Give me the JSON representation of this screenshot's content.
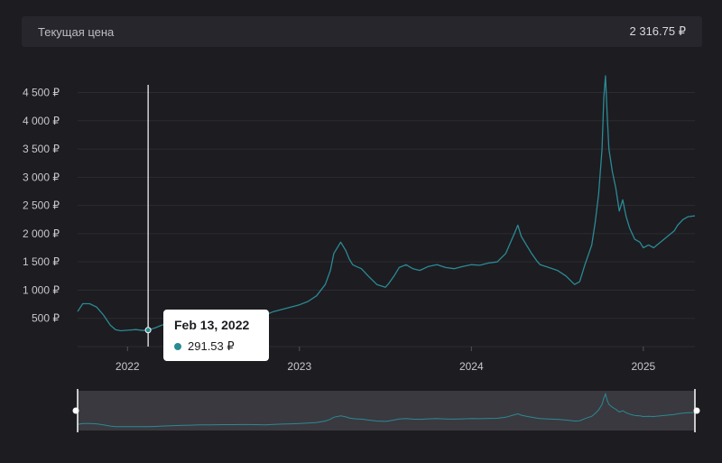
{
  "header": {
    "label": "Текущая цена",
    "current_price": "2 316.75 ₽"
  },
  "tooltip": {
    "date": "Feb 13, 2022",
    "value": "291.53 ₽"
  },
  "colors": {
    "background": "#1d1c21",
    "line": "#2a8a94",
    "grid": "#2c2b31",
    "crosshair": "#ffffff"
  },
  "chart_data": {
    "type": "line",
    "title": "",
    "xlabel": "",
    "ylabel": "",
    "currency_suffix": " ₽",
    "ylim": [
      0,
      4700
    ],
    "xlim": [
      2021.71,
      2025.3
    ],
    "y_ticks": [
      500,
      1000,
      1500,
      2000,
      2500,
      3000,
      3500,
      4000,
      4500
    ],
    "y_tick_labels": [
      "500 ₽",
      "1 000 ₽",
      "1 500 ₽",
      "2 000 ₽",
      "2 500 ₽",
      "3 000 ₽",
      "3 500 ₽",
      "4 000 ₽",
      "4 500 ₽"
    ],
    "x_ticks": [
      2022,
      2023,
      2024,
      2025
    ],
    "x_tick_labels": [
      "2022",
      "2023",
      "2024",
      "2025"
    ],
    "grid": true,
    "crosshair_x": 2022.12,
    "series": [
      {
        "x": [
          2021.71,
          2021.74,
          2021.78,
          2021.82,
          2021.86,
          2021.9,
          2021.93,
          2021.96,
          2022.0,
          2022.05,
          2022.09,
          2022.12,
          2022.16,
          2022.2,
          2022.25,
          2022.3,
          2022.36,
          2022.42,
          2022.48,
          2022.55,
          2022.62,
          2022.68,
          2022.75,
          2022.8,
          2022.85,
          2022.9,
          2022.95,
          2023.0,
          2023.05,
          2023.1,
          2023.15,
          2023.18,
          2023.2,
          2023.24,
          2023.27,
          2023.29,
          2023.31,
          2023.33,
          2023.36,
          2023.4,
          2023.45,
          2023.5,
          2023.52,
          2023.55,
          2023.58,
          2023.62,
          2023.66,
          2023.7,
          2023.75,
          2023.8,
          2023.85,
          2023.9,
          2023.95,
          2024.0,
          2024.05,
          2024.1,
          2024.15,
          2024.2,
          2024.25,
          2024.27,
          2024.29,
          2024.32,
          2024.35,
          2024.38,
          2024.4,
          2024.45,
          2024.5,
          2024.55,
          2024.6,
          2024.63,
          2024.66,
          2024.7,
          2024.72,
          2024.74,
          2024.76,
          2024.77,
          2024.78,
          2024.79,
          2024.8,
          2024.82,
          2024.84,
          2024.86,
          2024.88,
          2024.9,
          2024.92,
          2024.95,
          2024.98,
          2025.0,
          2025.03,
          2025.06,
          2025.1,
          2025.14,
          2025.18,
          2025.2,
          2025.23,
          2025.26,
          2025.3
        ],
        "y": [
          620,
          760,
          760,
          700,
          560,
          380,
          300,
          280,
          290,
          300,
          285,
          292,
          330,
          380,
          420,
          470,
          510,
          540,
          560,
          580,
          590,
          600,
          580,
          560,
          620,
          660,
          700,
          740,
          800,
          900,
          1100,
          1350,
          1650,
          1850,
          1700,
          1550,
          1450,
          1420,
          1380,
          1250,
          1100,
          1050,
          1120,
          1250,
          1400,
          1450,
          1380,
          1350,
          1420,
          1450,
          1400,
          1380,
          1420,
          1450,
          1440,
          1480,
          1500,
          1650,
          2000,
          2150,
          1950,
          1800,
          1650,
          1520,
          1450,
          1400,
          1350,
          1250,
          1100,
          1150,
          1450,
          1800,
          2200,
          2700,
          3500,
          4400,
          5000,
          4100,
          3500,
          3100,
          2800,
          2400,
          2600,
          2300,
          2100,
          1900,
          1850,
          1750,
          1800,
          1750,
          1850,
          1950,
          2050,
          2150,
          2250,
          2300,
          2316.75
        ]
      }
    ]
  }
}
